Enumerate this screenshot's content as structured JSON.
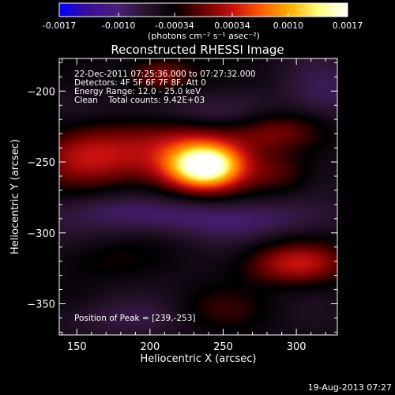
{
  "chart_data": {
    "type": "heatmap",
    "title": "Reconstructed RHESSI Image",
    "xlabel": "Heliocentric X (arcsec)",
    "ylabel": "Heliocentric Y (arcsec)",
    "xlim": [
      138,
      328
    ],
    "ylim": [
      -372,
      -177
    ],
    "x_ticks": [
      150,
      200,
      250,
      300
    ],
    "y_ticks": [
      -200,
      -250,
      -300,
      -350
    ],
    "colorbar": {
      "range": [
        -0.0017,
        0.0017
      ],
      "ticks": [
        "-0.0017",
        "-0.0010",
        "-0.00034",
        "0.00034",
        "0.0010",
        "0.0017"
      ],
      "units_label": "(photons cm⁻² s⁻¹ asec⁻²)",
      "colormap": [
        "#0000ff",
        "#3a0e96",
        "#4a1f7a",
        "#2b1430",
        "#000000",
        "#6a0000",
        "#c81010",
        "#ff5a00",
        "#ffb000",
        "#ffff80",
        "#ffffff"
      ]
    },
    "info_lines": [
      "22-Dec-2011 07:25:36.000 to 07:27:32.000",
      "Detectors: 4F 5F 6F 7F 8F, Att 0",
      "Energy Range: 12.0 - 25.0 keV",
      "Clean    Total counts: 9.42E+03"
    ],
    "peak_label": "Position of Peak = [239,-253]",
    "peak": [
      239,
      -253
    ],
    "sources": [
      {
        "x": 238,
        "y": -253,
        "sx": 16,
        "sy": 10,
        "amp": 1.0
      },
      {
        "x": 228,
        "y": -247,
        "sx": 28,
        "sy": 17,
        "amp": 0.55
      },
      {
        "x": 160,
        "y": -245,
        "sx": 26,
        "sy": 15,
        "amp": 0.45
      },
      {
        "x": 207,
        "y": -188,
        "sx": 16,
        "sy": 8,
        "amp": 0.35
      },
      {
        "x": 285,
        "y": -228,
        "sx": 22,
        "sy": 10,
        "amp": 0.28
      },
      {
        "x": 300,
        "y": -322,
        "sx": 24,
        "sy": 10,
        "amp": 0.45
      },
      {
        "x": 290,
        "y": -258,
        "sx": 16,
        "sy": 10,
        "amp": 0.2
      },
      {
        "x": 245,
        "y": -355,
        "sx": 24,
        "sy": 10,
        "amp": 0.15
      },
      {
        "x": 165,
        "y": -320,
        "sx": 24,
        "sy": 9,
        "amp": 0.1
      },
      {
        "x": 260,
        "y": -290,
        "sx": 50,
        "sy": 10,
        "amp": -0.25
      },
      {
        "x": 180,
        "y": -285,
        "sx": 40,
        "sy": 10,
        "amp": -0.2
      },
      {
        "x": 230,
        "y": -215,
        "sx": 45,
        "sy": 9,
        "amp": -0.18
      },
      {
        "x": 320,
        "y": -200,
        "sx": 20,
        "sy": 15,
        "amp": -0.22
      },
      {
        "x": 180,
        "y": -360,
        "sx": 40,
        "sy": 10,
        "amp": -0.15
      }
    ]
  },
  "footer": {
    "timestamp": "19-Aug-2013 07:27"
  }
}
